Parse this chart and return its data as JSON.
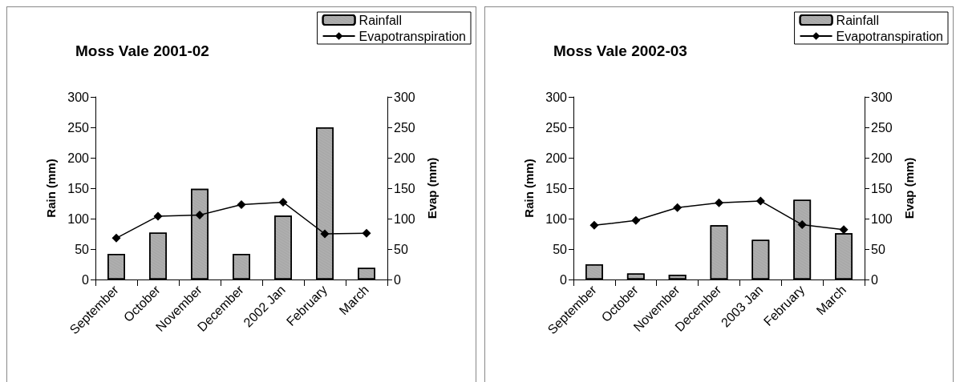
{
  "chart_data": [
    {
      "type": "bar",
      "title": "Moss Vale 2001-02",
      "ylabel": "Rain (mm)",
      "y2label": "Evap (mm)",
      "categories": [
        "September",
        "October",
        "November",
        "December",
        "2002 Jan",
        "February",
        "March"
      ],
      "series": [
        {
          "name": "Rainfall",
          "color": "#a6a6a6",
          "values": [
            42,
            77,
            149,
            42,
            105,
            250,
            19
          ]
        },
        {
          "name": "Evapotranspiration",
          "type": "line",
          "axis": "y2",
          "color": "#000000",
          "marker": "diamond",
          "values": [
            68,
            104,
            106,
            123,
            127,
            75,
            76
          ]
        }
      ],
      "ylim": [
        0,
        300
      ],
      "yticks": [
        0,
        50,
        100,
        150,
        200,
        250,
        300
      ],
      "y2lim": [
        0,
        300
      ],
      "y2ticks": [
        0,
        50,
        100,
        150,
        200,
        250,
        300
      ],
      "grid": false,
      "legend": "top right"
    },
    {
      "type": "bar",
      "title": "Moss Vale 2002-03",
      "ylabel": "Rain (mm)",
      "y2label": "Evap (mm)",
      "categories": [
        "September",
        "October",
        "November",
        "December",
        "2003 Jan",
        "February",
        "March"
      ],
      "series": [
        {
          "name": "Rainfall",
          "color": "#a6a6a6",
          "values": [
            25,
            10,
            8,
            89,
            65,
            131,
            76
          ]
        },
        {
          "name": "Evapotranspiration",
          "type": "line",
          "axis": "y2",
          "color": "#000000",
          "marker": "diamond",
          "values": [
            89,
            97,
            118,
            126,
            129,
            90,
            82
          ]
        }
      ],
      "ylim": [
        0,
        300
      ],
      "yticks": [
        0,
        50,
        100,
        150,
        200,
        250,
        300
      ],
      "y2lim": [
        0,
        300
      ],
      "y2ticks": [
        0,
        50,
        100,
        150,
        200,
        250,
        300
      ],
      "grid": false,
      "legend": "top right"
    }
  ]
}
